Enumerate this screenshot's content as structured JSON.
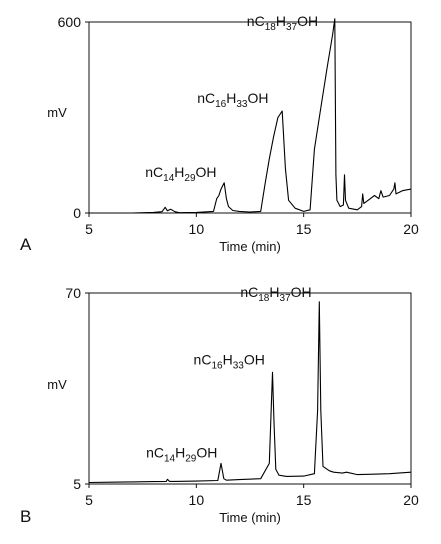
{
  "chart_data": [
    {
      "type": "line",
      "panel_label": "A",
      "xlabel": "Time (min)",
      "ylabel": "mV",
      "xlim": [
        5,
        20
      ],
      "ylim": [
        0,
        600
      ],
      "x_ticks": [
        "5",
        "10",
        "15",
        "20"
      ],
      "y_ticks": [
        "0",
        "600"
      ],
      "grid": false,
      "series": [
        {
          "x": [
            5,
            6,
            7,
            8,
            8.4,
            8.55,
            8.65,
            8.8,
            9.0,
            9.2,
            10,
            10.8,
            10.95,
            11.05,
            11.15,
            11.3,
            11.4,
            11.5,
            11.7,
            12,
            12.5,
            13.0,
            13.2,
            13.4,
            13.6,
            13.8,
            14.0,
            14.15,
            14.3,
            14.6,
            15.0,
            15.3,
            15.5,
            15.8,
            16.1,
            16.35,
            16.45,
            16.5,
            16.55,
            16.7,
            16.85,
            16.9,
            16.95,
            17.1,
            17.5,
            17.7,
            17.75,
            17.8,
            18.0,
            18.3,
            18.5,
            18.6,
            18.7,
            19.0,
            19.2,
            19.25,
            19.3,
            19.6,
            20
          ],
          "y": [
            0,
            0,
            0,
            2,
            4,
            18,
            7,
            12,
            4,
            1,
            2,
            5,
            45,
            55,
            75,
            95,
            45,
            20,
            8,
            5,
            3,
            5,
            90,
            170,
            240,
            300,
            320,
            140,
            40,
            15,
            5,
            10,
            200,
            330,
            460,
            560,
            610,
            120,
            40,
            20,
            25,
            120,
            40,
            15,
            10,
            20,
            60,
            30,
            40,
            55,
            45,
            70,
            50,
            55,
            75,
            95,
            60,
            70,
            75
          ]
        }
      ],
      "annotations": [
        {
          "text": "nC14H29OH",
          "x": 11.3,
          "y": 95
        },
        {
          "text": "nC16H33OH",
          "x": 14.0,
          "y": 320
        },
        {
          "text": "nC18H37OH",
          "x": 16.45,
          "y": 610
        }
      ]
    },
    {
      "type": "line",
      "panel_label": "B",
      "xlabel": "Time (min)",
      "ylabel": "mV",
      "xlim": [
        5,
        20
      ],
      "ylim": [
        5,
        70
      ],
      "x_ticks": [
        "5",
        "10",
        "15",
        "20"
      ],
      "y_ticks": [
        "5",
        "70"
      ],
      "grid": false,
      "series": [
        {
          "x": [
            5,
            6,
            7,
            8,
            8.6,
            8.65,
            8.75,
            9.0,
            10,
            11.0,
            11.15,
            11.2,
            11.28,
            11.4,
            12,
            13.0,
            13.4,
            13.55,
            13.62,
            13.7,
            13.85,
            14.2,
            15.0,
            15.5,
            15.65,
            15.73,
            15.8,
            15.9,
            16.2,
            16.4,
            16.8,
            17.0,
            17.5,
            18,
            19,
            20
          ],
          "y": [
            5.5,
            5.6,
            5.7,
            5.8,
            5.9,
            6.6,
            5.9,
            5.9,
            6.0,
            6.2,
            12.0,
            10.0,
            6.8,
            6.3,
            6.5,
            6.8,
            12.0,
            43.0,
            26.0,
            10.0,
            8.0,
            7.6,
            7.7,
            8.5,
            30.0,
            67.0,
            30.0,
            11.0,
            9.5,
            9.0,
            8.7,
            9.0,
            8.2,
            8.3,
            8.5,
            9.0
          ]
        }
      ],
      "annotations": [
        {
          "text": "nC14H29OH",
          "x": 11.2,
          "y": 12.0
        },
        {
          "text": "nC16H33OH",
          "x": 13.55,
          "y": 43.0
        },
        {
          "text": "nC18H37OH",
          "x": 15.73,
          "y": 67.0
        }
      ]
    }
  ]
}
